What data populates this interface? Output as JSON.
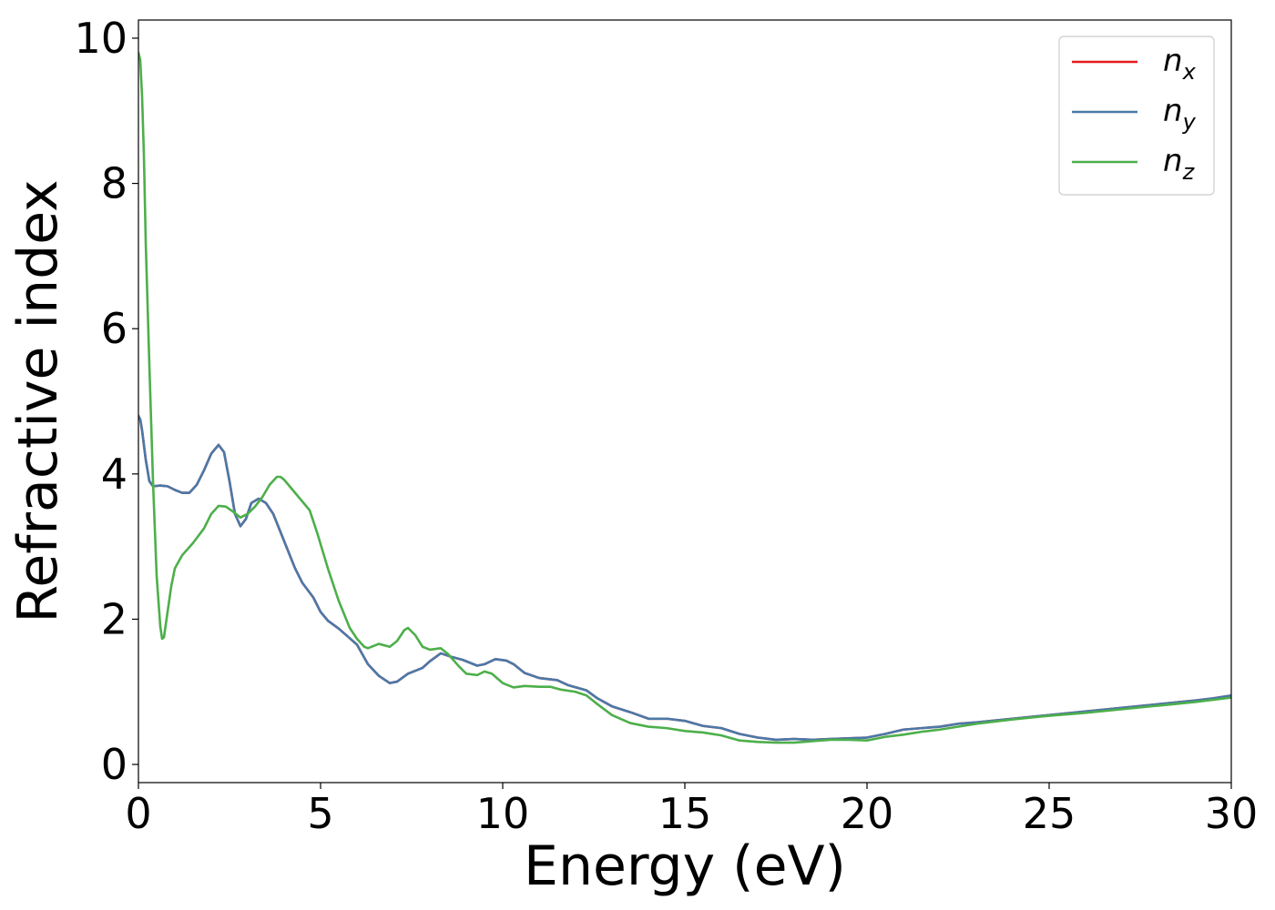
{
  "chart_data": {
    "type": "line",
    "title": "",
    "xlabel": "Energy (eV)",
    "ylabel": "Refractive index",
    "xlim": [
      0,
      30
    ],
    "ylim": [
      -0.25,
      10.25
    ],
    "xticks": [
      0,
      5,
      10,
      15,
      20,
      25,
      30
    ],
    "yticks": [
      0,
      2,
      4,
      6,
      8,
      10
    ],
    "grid": false,
    "legend_position": "top-right",
    "series": [
      {
        "name": "n",
        "subscript": "x",
        "color": "#e41a1c",
        "points": [
          [
            0,
            4.8
          ],
          [
            0.05,
            4.75
          ],
          [
            0.1,
            4.6
          ],
          [
            0.2,
            4.2
          ],
          [
            0.3,
            3.9
          ],
          [
            0.4,
            3.83
          ],
          [
            0.6,
            3.84
          ],
          [
            0.8,
            3.83
          ],
          [
            1.0,
            3.78
          ],
          [
            1.2,
            3.74
          ],
          [
            1.4,
            3.74
          ],
          [
            1.6,
            3.85
          ],
          [
            1.8,
            4.05
          ],
          [
            2.0,
            4.28
          ],
          [
            2.2,
            4.4
          ],
          [
            2.35,
            4.3
          ],
          [
            2.5,
            3.9
          ],
          [
            2.65,
            3.45
          ],
          [
            2.8,
            3.28
          ],
          [
            2.95,
            3.38
          ],
          [
            3.1,
            3.6
          ],
          [
            3.3,
            3.66
          ],
          [
            3.5,
            3.6
          ],
          [
            3.7,
            3.45
          ],
          [
            3.9,
            3.2
          ],
          [
            4.1,
            2.95
          ],
          [
            4.3,
            2.7
          ],
          [
            4.5,
            2.5
          ],
          [
            4.8,
            2.3
          ],
          [
            5.0,
            2.1
          ],
          [
            5.2,
            1.98
          ],
          [
            5.5,
            1.87
          ],
          [
            6.0,
            1.65
          ],
          [
            6.3,
            1.38
          ],
          [
            6.6,
            1.22
          ],
          [
            6.9,
            1.12
          ],
          [
            7.1,
            1.14
          ],
          [
            7.4,
            1.25
          ],
          [
            7.8,
            1.33
          ],
          [
            8.0,
            1.42
          ],
          [
            8.3,
            1.53
          ],
          [
            8.6,
            1.48
          ],
          [
            8.9,
            1.44
          ],
          [
            9.3,
            1.36
          ],
          [
            9.5,
            1.38
          ],
          [
            9.8,
            1.45
          ],
          [
            10.1,
            1.43
          ],
          [
            10.3,
            1.38
          ],
          [
            10.6,
            1.26
          ],
          [
            11.0,
            1.19
          ],
          [
            11.5,
            1.16
          ],
          [
            11.8,
            1.09
          ],
          [
            12.3,
            1.02
          ],
          [
            12.6,
            0.91
          ],
          [
            13.0,
            0.8
          ],
          [
            13.5,
            0.72
          ],
          [
            14.0,
            0.63
          ],
          [
            14.5,
            0.63
          ],
          [
            15.0,
            0.6
          ],
          [
            15.5,
            0.53
          ],
          [
            16.0,
            0.5
          ],
          [
            16.5,
            0.42
          ],
          [
            17.0,
            0.37
          ],
          [
            17.5,
            0.34
          ],
          [
            18.0,
            0.35
          ],
          [
            18.5,
            0.34
          ],
          [
            19.0,
            0.35
          ],
          [
            19.5,
            0.36
          ],
          [
            20.0,
            0.37
          ],
          [
            20.5,
            0.42
          ],
          [
            21.0,
            0.48
          ],
          [
            21.5,
            0.5
          ],
          [
            22.0,
            0.52
          ],
          [
            22.5,
            0.56
          ],
          [
            23.0,
            0.58
          ],
          [
            24.0,
            0.63
          ],
          [
            25.0,
            0.68
          ],
          [
            26.0,
            0.73
          ],
          [
            27.0,
            0.78
          ],
          [
            28.0,
            0.83
          ],
          [
            29.0,
            0.88
          ],
          [
            29.5,
            0.91
          ],
          [
            30.0,
            0.95
          ]
        ]
      },
      {
        "name": "n",
        "subscript": "y",
        "color": "#4a79a8",
        "points": [
          [
            0,
            4.8
          ],
          [
            0.05,
            4.75
          ],
          [
            0.1,
            4.6
          ],
          [
            0.2,
            4.2
          ],
          [
            0.3,
            3.9
          ],
          [
            0.4,
            3.83
          ],
          [
            0.6,
            3.84
          ],
          [
            0.8,
            3.83
          ],
          [
            1.0,
            3.78
          ],
          [
            1.2,
            3.74
          ],
          [
            1.4,
            3.74
          ],
          [
            1.6,
            3.85
          ],
          [
            1.8,
            4.05
          ],
          [
            2.0,
            4.28
          ],
          [
            2.2,
            4.4
          ],
          [
            2.35,
            4.3
          ],
          [
            2.5,
            3.9
          ],
          [
            2.65,
            3.45
          ],
          [
            2.8,
            3.28
          ],
          [
            2.95,
            3.38
          ],
          [
            3.1,
            3.6
          ],
          [
            3.3,
            3.66
          ],
          [
            3.5,
            3.6
          ],
          [
            3.7,
            3.45
          ],
          [
            3.9,
            3.2
          ],
          [
            4.1,
            2.95
          ],
          [
            4.3,
            2.7
          ],
          [
            4.5,
            2.5
          ],
          [
            4.8,
            2.3
          ],
          [
            5.0,
            2.1
          ],
          [
            5.2,
            1.98
          ],
          [
            5.5,
            1.87
          ],
          [
            6.0,
            1.65
          ],
          [
            6.3,
            1.38
          ],
          [
            6.6,
            1.22
          ],
          [
            6.9,
            1.12
          ],
          [
            7.1,
            1.14
          ],
          [
            7.4,
            1.25
          ],
          [
            7.8,
            1.33
          ],
          [
            8.0,
            1.42
          ],
          [
            8.3,
            1.53
          ],
          [
            8.6,
            1.48
          ],
          [
            8.9,
            1.44
          ],
          [
            9.3,
            1.36
          ],
          [
            9.5,
            1.38
          ],
          [
            9.8,
            1.45
          ],
          [
            10.1,
            1.43
          ],
          [
            10.3,
            1.38
          ],
          [
            10.6,
            1.26
          ],
          [
            11.0,
            1.19
          ],
          [
            11.5,
            1.16
          ],
          [
            11.8,
            1.09
          ],
          [
            12.3,
            1.02
          ],
          [
            12.6,
            0.91
          ],
          [
            13.0,
            0.8
          ],
          [
            13.5,
            0.72
          ],
          [
            14.0,
            0.63
          ],
          [
            14.5,
            0.63
          ],
          [
            15.0,
            0.6
          ],
          [
            15.5,
            0.53
          ],
          [
            16.0,
            0.5
          ],
          [
            16.5,
            0.42
          ],
          [
            17.0,
            0.37
          ],
          [
            17.5,
            0.34
          ],
          [
            18.0,
            0.35
          ],
          [
            18.5,
            0.34
          ],
          [
            19.0,
            0.35
          ],
          [
            19.5,
            0.36
          ],
          [
            20.0,
            0.37
          ],
          [
            20.5,
            0.42
          ],
          [
            21.0,
            0.48
          ],
          [
            21.5,
            0.5
          ],
          [
            22.0,
            0.52
          ],
          [
            22.5,
            0.56
          ],
          [
            23.0,
            0.58
          ],
          [
            24.0,
            0.63
          ],
          [
            25.0,
            0.68
          ],
          [
            26.0,
            0.73
          ],
          [
            27.0,
            0.78
          ],
          [
            28.0,
            0.83
          ],
          [
            29.0,
            0.88
          ],
          [
            29.5,
            0.91
          ],
          [
            30.0,
            0.95
          ]
        ]
      },
      {
        "name": "n",
        "subscript": "z",
        "color": "#4daf4a",
        "points": [
          [
            0,
            9.8
          ],
          [
            0.05,
            9.7
          ],
          [
            0.1,
            9.2
          ],
          [
            0.15,
            8.4
          ],
          [
            0.2,
            7.2
          ],
          [
            0.3,
            5.5
          ],
          [
            0.4,
            3.9
          ],
          [
            0.5,
            2.6
          ],
          [
            0.6,
            1.9
          ],
          [
            0.65,
            1.73
          ],
          [
            0.7,
            1.75
          ],
          [
            0.8,
            2.1
          ],
          [
            0.9,
            2.45
          ],
          [
            1.0,
            2.7
          ],
          [
            1.2,
            2.88
          ],
          [
            1.5,
            3.05
          ],
          [
            1.8,
            3.25
          ],
          [
            2.0,
            3.45
          ],
          [
            2.2,
            3.56
          ],
          [
            2.4,
            3.55
          ],
          [
            2.6,
            3.48
          ],
          [
            2.8,
            3.4
          ],
          [
            3.0,
            3.45
          ],
          [
            3.2,
            3.55
          ],
          [
            3.4,
            3.68
          ],
          [
            3.6,
            3.85
          ],
          [
            3.8,
            3.96
          ],
          [
            3.9,
            3.96
          ],
          [
            4.0,
            3.92
          ],
          [
            4.2,
            3.8
          ],
          [
            4.5,
            3.62
          ],
          [
            4.7,
            3.5
          ],
          [
            4.9,
            3.2
          ],
          [
            5.2,
            2.7
          ],
          [
            5.5,
            2.25
          ],
          [
            5.8,
            1.88
          ],
          [
            6.0,
            1.73
          ],
          [
            6.2,
            1.62
          ],
          [
            6.3,
            1.6
          ],
          [
            6.6,
            1.66
          ],
          [
            6.9,
            1.62
          ],
          [
            7.1,
            1.7
          ],
          [
            7.3,
            1.85
          ],
          [
            7.4,
            1.88
          ],
          [
            7.6,
            1.78
          ],
          [
            7.8,
            1.62
          ],
          [
            8.0,
            1.58
          ],
          [
            8.3,
            1.6
          ],
          [
            8.5,
            1.52
          ],
          [
            8.8,
            1.35
          ],
          [
            9.0,
            1.25
          ],
          [
            9.3,
            1.23
          ],
          [
            9.5,
            1.28
          ],
          [
            9.7,
            1.25
          ],
          [
            10.0,
            1.12
          ],
          [
            10.3,
            1.06
          ],
          [
            10.6,
            1.08
          ],
          [
            11.0,
            1.07
          ],
          [
            11.3,
            1.07
          ],
          [
            11.6,
            1.03
          ],
          [
            12.0,
            1.0
          ],
          [
            12.3,
            0.95
          ],
          [
            12.6,
            0.83
          ],
          [
            13.0,
            0.68
          ],
          [
            13.5,
            0.57
          ],
          [
            14.0,
            0.52
          ],
          [
            14.5,
            0.5
          ],
          [
            15.0,
            0.46
          ],
          [
            15.5,
            0.44
          ],
          [
            16.0,
            0.4
          ],
          [
            16.5,
            0.33
          ],
          [
            17.0,
            0.31
          ],
          [
            17.5,
            0.3
          ],
          [
            18.0,
            0.3
          ],
          [
            18.5,
            0.32
          ],
          [
            19.0,
            0.34
          ],
          [
            19.5,
            0.34
          ],
          [
            20.0,
            0.33
          ],
          [
            20.5,
            0.38
          ],
          [
            21.0,
            0.41
          ],
          [
            21.5,
            0.45
          ],
          [
            22.0,
            0.48
          ],
          [
            23.0,
            0.56
          ],
          [
            24.0,
            0.62
          ],
          [
            25.0,
            0.67
          ],
          [
            26.0,
            0.71
          ],
          [
            27.0,
            0.76
          ],
          [
            28.0,
            0.81
          ],
          [
            29.0,
            0.86
          ],
          [
            30.0,
            0.92
          ]
        ]
      }
    ]
  }
}
